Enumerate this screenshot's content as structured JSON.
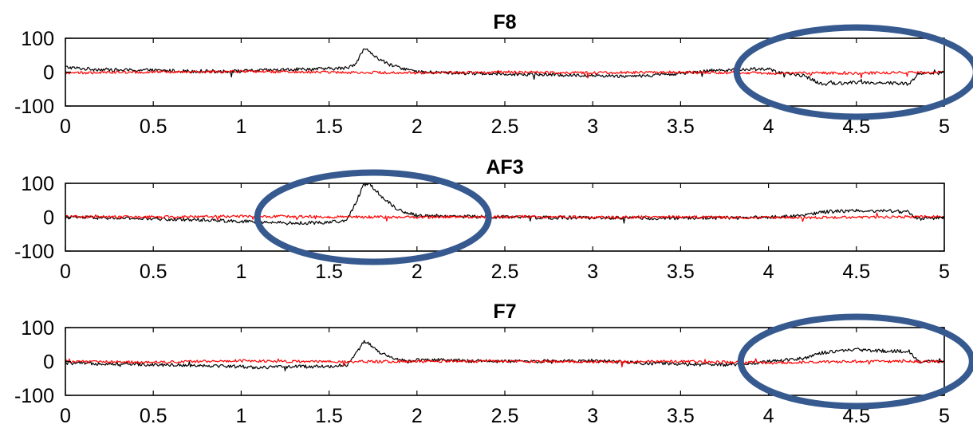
{
  "chart_data": [
    {
      "type": "line",
      "title": "F8",
      "xlim": [
        0,
        5
      ],
      "ylim": [
        -100,
        100
      ],
      "x_ticks": [
        0,
        0.5,
        1,
        1.5,
        2,
        2.5,
        3,
        3.5,
        4,
        4.5,
        5
      ],
      "x_tick_labels": [
        "0",
        "0.5",
        "1",
        "1.5",
        "2",
        "2.5",
        "3",
        "3.5",
        "4",
        "4.5",
        "5"
      ],
      "y_ticks": [
        -100,
        0,
        100
      ],
      "y_tick_labels": [
        "-100",
        "0",
        "100"
      ],
      "grid": false,
      "series": [
        {
          "color": "#000000",
          "x": [
            0,
            0.1,
            0.2,
            0.3,
            0.4,
            0.5,
            0.6,
            0.7,
            0.8,
            0.9,
            1.0,
            1.1,
            1.2,
            1.3,
            1.4,
            1.5,
            1.6,
            1.65,
            1.7,
            1.73,
            1.78,
            1.85,
            1.95,
            2.0,
            2.2,
            2.4,
            2.6,
            2.8,
            3.0,
            3.2,
            3.4,
            3.6,
            3.8,
            4.0,
            4.05,
            4.2,
            4.3,
            4.5,
            4.7,
            4.8,
            4.85,
            5.0
          ],
          "y": [
            15,
            10,
            8,
            6,
            6,
            5,
            4,
            3,
            3,
            2,
            3,
            5,
            6,
            8,
            9,
            10,
            12,
            25,
            70,
            60,
            40,
            20,
            8,
            0,
            -2,
            -4,
            -6,
            -8,
            -10,
            -12,
            -8,
            2,
            8,
            10,
            -2,
            -10,
            -35,
            -30,
            -32,
            -35,
            -5,
            -2
          ]
        },
        {
          "color": "#ff0000",
          "x": [
            0,
            0.5,
            1.0,
            1.5,
            2.0,
            2.5,
            3.0,
            3.5,
            4.0,
            4.5,
            5.0
          ],
          "y": [
            -2,
            0,
            2,
            0,
            -2,
            0,
            -2,
            0,
            -3,
            -3,
            0
          ]
        }
      ],
      "annotations": [
        {
          "shape": "ellipse",
          "color": "#365a8f",
          "cx": 4.5,
          "cy": 0
        }
      ]
    },
    {
      "type": "line",
      "title": "AF3",
      "xlim": [
        0,
        5
      ],
      "ylim": [
        -100,
        100
      ],
      "x_ticks": [
        0,
        0.5,
        1,
        1.5,
        2,
        2.5,
        3,
        3.5,
        4,
        4.5,
        5
      ],
      "x_tick_labels": [
        "0",
        "0.5",
        "1",
        "1.5",
        "2",
        "2.5",
        "3",
        "3.5",
        "4",
        "4.5",
        "5"
      ],
      "y_ticks": [
        -100,
        0,
        100
      ],
      "y_tick_labels": [
        "-100",
        "0",
        "100"
      ],
      "grid": false,
      "series": [
        {
          "color": "#000000",
          "x": [
            0,
            0.2,
            0.4,
            0.6,
            0.8,
            1.0,
            1.1,
            1.3,
            1.5,
            1.6,
            1.65,
            1.7,
            1.73,
            1.8,
            1.9,
            2.0,
            2.2,
            2.5,
            3.0,
            3.5,
            4.0,
            4.2,
            4.3,
            4.5,
            4.7,
            4.8,
            4.85,
            5.0
          ],
          "y": [
            0,
            -2,
            -4,
            -6,
            -8,
            -12,
            -15,
            -18,
            -15,
            -10,
            40,
            100,
            100,
            60,
            20,
            5,
            3,
            0,
            -2,
            -3,
            0,
            5,
            15,
            20,
            18,
            15,
            -5,
            0
          ]
        },
        {
          "color": "#ff0000",
          "x": [
            0,
            0.5,
            1.0,
            1.5,
            2.0,
            2.5,
            3.0,
            3.5,
            4.0,
            4.5,
            5.0
          ],
          "y": [
            2,
            0,
            3,
            1,
            0,
            2,
            0,
            1,
            -2,
            0,
            2
          ]
        }
      ],
      "annotations": [
        {
          "shape": "ellipse",
          "color": "#365a8f",
          "cx": 1.75,
          "cy": 0
        }
      ]
    },
    {
      "type": "line",
      "title": "F7",
      "xlim": [
        0,
        5
      ],
      "ylim": [
        -100,
        100
      ],
      "x_ticks": [
        0,
        0.5,
        1,
        1.5,
        2,
        2.5,
        3,
        3.5,
        4,
        4.5,
        5
      ],
      "x_tick_labels": [
        "0",
        "0.5",
        "1",
        "1.5",
        "2",
        "2.5",
        "3",
        "3.5",
        "4",
        "4.5",
        "5"
      ],
      "y_ticks": [
        -100,
        0,
        100
      ],
      "y_tick_labels": [
        "-100",
        "0",
        "100"
      ],
      "grid": false,
      "series": [
        {
          "color": "#000000",
          "x": [
            0,
            0.2,
            0.4,
            0.6,
            0.8,
            1.0,
            1.1,
            1.3,
            1.5,
            1.6,
            1.65,
            1.7,
            1.73,
            1.78,
            1.85,
            1.95,
            2.0,
            2.2,
            2.5,
            3.0,
            3.3,
            3.5,
            3.8,
            4.0,
            4.2,
            4.3,
            4.5,
            4.7,
            4.8,
            4.85,
            5.0
          ],
          "y": [
            -5,
            -6,
            -8,
            -10,
            -12,
            -15,
            -18,
            -15,
            -15,
            -10,
            20,
            60,
            50,
            30,
            10,
            0,
            5,
            3,
            0,
            2,
            -5,
            -8,
            -10,
            0,
            10,
            25,
            35,
            30,
            30,
            0,
            0
          ]
        },
        {
          "color": "#ff0000",
          "x": [
            0,
            0.5,
            1.0,
            1.5,
            2.0,
            2.5,
            3.0,
            3.5,
            4.0,
            4.5,
            5.0
          ],
          "y": [
            0,
            -2,
            2,
            -1,
            0,
            1,
            -1,
            0,
            -4,
            0,
            0
          ]
        }
      ],
      "annotations": [
        {
          "shape": "ellipse",
          "color": "#365a8f",
          "cx": 4.5,
          "cy": 0
        }
      ]
    }
  ]
}
